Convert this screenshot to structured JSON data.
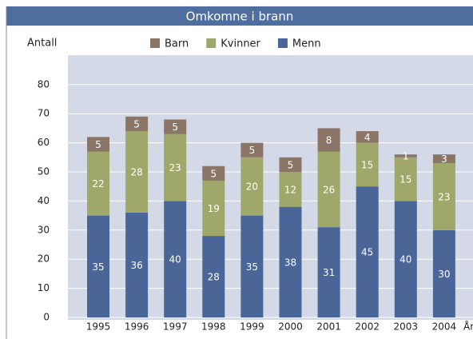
{
  "chart_data": {
    "type": "stacked_bar",
    "title": "Omkomne i brann",
    "y_label": "Antall",
    "x_label": "År",
    "categories": [
      "1995",
      "1996",
      "1997",
      "1998",
      "1999",
      "2000",
      "2001",
      "2002",
      "2003",
      "2004"
    ],
    "series": [
      {
        "name": "Menn",
        "color": "#4a6699",
        "values": [
          35,
          36,
          40,
          28,
          35,
          38,
          31,
          45,
          40,
          30
        ]
      },
      {
        "name": "Kvinner",
        "color": "#9fa86a",
        "values": [
          22,
          28,
          23,
          19,
          20,
          12,
          26,
          15,
          15,
          23
        ]
      },
      {
        "name": "Barn",
        "color": "#8b7567",
        "values": [
          5,
          5,
          5,
          5,
          5,
          5,
          8,
          4,
          1,
          3
        ]
      }
    ],
    "legend_order": [
      2,
      1,
      0
    ],
    "ylim": [
      0,
      90
    ],
    "yticks": [
      0,
      10,
      20,
      30,
      40,
      50,
      60,
      70,
      80
    ],
    "grid": true
  }
}
